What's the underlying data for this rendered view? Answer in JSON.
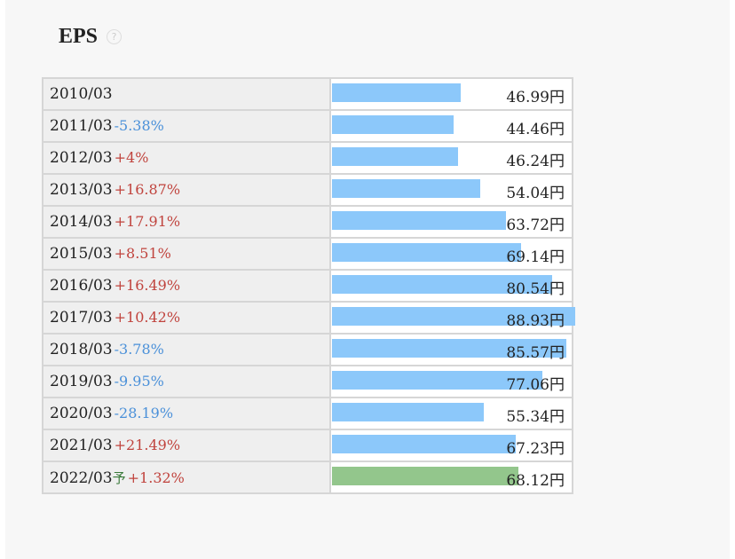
{
  "title": "EPS",
  "help_icon": "question-circle-icon",
  "colors": {
    "bar": "#8cc8fa",
    "forecast_bar": "#93c68c",
    "up": "#c0433d",
    "down": "#4a90d9"
  },
  "chart_data": {
    "type": "bar",
    "orientation": "horizontal",
    "title": "EPS",
    "unit": "円",
    "xlim": [
      0,
      88.93
    ],
    "rows": [
      {
        "year": "2010/03",
        "change": "",
        "direction": "",
        "value": 46.99,
        "value_label": "46.99円",
        "forecast": false,
        "forecast_mark": ""
      },
      {
        "year": "2011/03",
        "change": "-5.38%",
        "direction": "down",
        "value": 44.46,
        "value_label": "44.46円",
        "forecast": false,
        "forecast_mark": ""
      },
      {
        "year": "2012/03",
        "change": "+4%",
        "direction": "up",
        "value": 46.24,
        "value_label": "46.24円",
        "forecast": false,
        "forecast_mark": ""
      },
      {
        "year": "2013/03",
        "change": "+16.87%",
        "direction": "up",
        "value": 54.04,
        "value_label": "54.04円",
        "forecast": false,
        "forecast_mark": ""
      },
      {
        "year": "2014/03",
        "change": "+17.91%",
        "direction": "up",
        "value": 63.72,
        "value_label": "63.72円",
        "forecast": false,
        "forecast_mark": ""
      },
      {
        "year": "2015/03",
        "change": "+8.51%",
        "direction": "up",
        "value": 69.14,
        "value_label": "69.14円",
        "forecast": false,
        "forecast_mark": ""
      },
      {
        "year": "2016/03",
        "change": "+16.49%",
        "direction": "up",
        "value": 80.54,
        "value_label": "80.54円",
        "forecast": false,
        "forecast_mark": ""
      },
      {
        "year": "2017/03",
        "change": "+10.42%",
        "direction": "up",
        "value": 88.93,
        "value_label": "88.93円",
        "forecast": false,
        "forecast_mark": ""
      },
      {
        "year": "2018/03",
        "change": "-3.78%",
        "direction": "down",
        "value": 85.57,
        "value_label": "85.57円",
        "forecast": false,
        "forecast_mark": ""
      },
      {
        "year": "2019/03",
        "change": "-9.95%",
        "direction": "down",
        "value": 77.06,
        "value_label": "77.06円",
        "forecast": false,
        "forecast_mark": ""
      },
      {
        "year": "2020/03",
        "change": "-28.19%",
        "direction": "down",
        "value": 55.34,
        "value_label": "55.34円",
        "forecast": false,
        "forecast_mark": ""
      },
      {
        "year": "2021/03",
        "change": "+21.49%",
        "direction": "up",
        "value": 67.23,
        "value_label": "67.23円",
        "forecast": false,
        "forecast_mark": ""
      },
      {
        "year": "2022/03",
        "change": "+1.32%",
        "direction": "up",
        "value": 68.12,
        "value_label": "68.12円",
        "forecast": true,
        "forecast_mark": "予"
      }
    ]
  }
}
